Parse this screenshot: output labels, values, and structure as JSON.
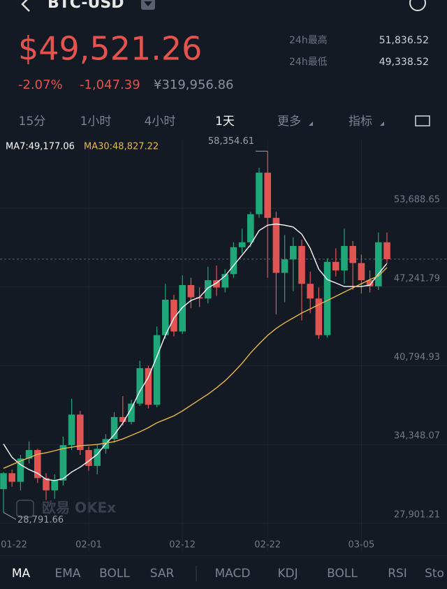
{
  "header": {
    "pair": "BTC-USD",
    "price": "$49,521.26",
    "change_pct": "-2.07%",
    "change": "-1,047.39",
    "cny": "¥319,956.86",
    "high_label": "24h最高",
    "high": "51,836.52",
    "low_label": "24h最低",
    "low": "49,338.52"
  },
  "tabs": [
    "15分",
    "1小时",
    "4小时",
    "1天",
    "更多",
    "指标"
  ],
  "indicators": [
    "MA",
    "EMA",
    "BOLL",
    "SAR",
    "MACD",
    "KDJ",
    "BOLL",
    "RSI",
    "Sto"
  ],
  "watermark": "欧易 OKEx",
  "chart_data": {
    "type": "candlestick",
    "categories": [
      "01-22",
      null,
      null,
      null,
      null,
      null,
      null,
      null,
      null,
      null,
      "02-01",
      null,
      null,
      null,
      null,
      null,
      null,
      null,
      null,
      null,
      null,
      "02-12",
      null,
      null,
      null,
      null,
      null,
      null,
      null,
      null,
      null,
      "02-22",
      null,
      null,
      null,
      null,
      null,
      null,
      null,
      null,
      null,
      null,
      "03-05",
      null,
      null,
      null
    ],
    "open": [
      30700,
      32000,
      31300,
      33200,
      33900,
      31600,
      30600,
      31400,
      34300,
      36800,
      33900,
      32600,
      34000,
      34800,
      36600,
      36200,
      37700,
      40600,
      37600,
      43300,
      46200,
      43600,
      47400,
      46400,
      46300,
      47800,
      47200,
      48300,
      50500,
      50900,
      53200,
      56600,
      52900,
      48400,
      49500,
      50600,
      47500,
      46300,
      43300,
      49300,
      48600,
      50600,
      49200,
      47800,
      47300,
      50900
    ],
    "high": [
      32100,
      32300,
      33500,
      34600,
      34000,
      32000,
      31900,
      35000,
      38100,
      37100,
      34200,
      34400,
      35200,
      37000,
      38300,
      38000,
      41200,
      40800,
      44000,
      47500,
      46600,
      48200,
      48000,
      47200,
      48900,
      49000,
      48700,
      50900,
      52000,
      53400,
      57000,
      58354.61,
      53400,
      51500,
      51300,
      51100,
      48500,
      47200,
      49600,
      50400,
      52000,
      51000,
      49900,
      48600,
      51700,
      51700
    ],
    "low": [
      28791.66,
      30900,
      30600,
      32800,
      31200,
      29800,
      29900,
      31000,
      33900,
      33500,
      32200,
      31900,
      33600,
      34500,
      35900,
      36000,
      37500,
      37300,
      37400,
      43000,
      43200,
      43400,
      45500,
      45600,
      45900,
      46500,
      46800,
      48000,
      50000,
      50500,
      52900,
      48000,
      45000,
      46000,
      46900,
      44500,
      45100,
      43000,
      43100,
      48100,
      47500,
      47000,
      46700,
      46800,
      47000,
      49200
    ],
    "close": [
      32000,
      31300,
      33200,
      33900,
      31600,
      30600,
      31400,
      34300,
      36800,
      33900,
      32600,
      34000,
      34800,
      36600,
      36200,
      37700,
      40600,
      37600,
      43300,
      46200,
      43600,
      47400,
      46400,
      46300,
      47800,
      47200,
      48300,
      50500,
      50900,
      53200,
      56600,
      52900,
      48400,
      49500,
      50600,
      47500,
      46300,
      43300,
      49300,
      48600,
      50600,
      49200,
      47800,
      47300,
      50900,
      49521.26
    ],
    "up_color": "#1fa77a",
    "down_color": "#e05454",
    "max_label": "58,354.61",
    "min_label": "28,791.66",
    "series": [
      {
        "name": "MA7:49,177.06",
        "color": "#ffffff",
        "values": [
          34400,
          33300,
          32700,
          32300,
          32000,
          31500,
          31400,
          31550,
          32100,
          32500,
          33000,
          33550,
          34400,
          35150,
          36100,
          37300,
          38700,
          39850,
          41550,
          43300,
          44700,
          45570,
          46140,
          46400,
          47170,
          47570,
          48140,
          49000,
          49850,
          50710,
          51860,
          52300,
          52400,
          52300,
          52150,
          51570,
          50400,
          48700,
          47850,
          47570,
          47280,
          47280,
          47280,
          47400,
          48310,
          49177.06
        ]
      },
      {
        "name": "MA30:48,827.22",
        "color": "#e9b84a",
        "values": [
          32400,
          32700,
          33000,
          33270,
          33550,
          33670,
          33840,
          34020,
          34130,
          34250,
          34300,
          34350,
          34470,
          34580,
          34810,
          35100,
          35390,
          35730,
          36130,
          36410,
          36700,
          37100,
          37560,
          38020,
          38470,
          38990,
          39560,
          40250,
          40990,
          41850,
          42590,
          43280,
          43850,
          44310,
          44710,
          45110,
          45450,
          45800,
          46140,
          46480,
          46830,
          47170,
          47510,
          47850,
          48140,
          48827.22
        ]
      }
    ],
    "ylim": [
      25556,
      59294
    ],
    "yticks": [
      {
        "value": 27901.21,
        "label": "27,901.21"
      },
      {
        "value": 34348.07,
        "label": "34,348.07"
      },
      {
        "value": 40794.93,
        "label": "40,794.93"
      },
      {
        "value": 47241.79,
        "label": "47,241.79"
      },
      {
        "value": 53688.65,
        "label": "53,688.65"
      }
    ],
    "grid": true
  }
}
